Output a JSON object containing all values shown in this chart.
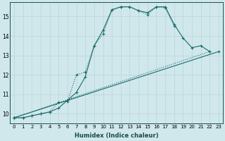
{
  "xlabel": "Humidex (Indice chaleur)",
  "background_color": "#d0e8ec",
  "line_color": "#1a6b6b",
  "grid_color": "#b8d4d8",
  "xlim": [
    -0.5,
    23.5
  ],
  "ylim": [
    9.5,
    15.75
  ],
  "yticks": [
    10,
    11,
    12,
    13,
    14,
    15
  ],
  "xticks": [
    0,
    1,
    2,
    3,
    4,
    5,
    6,
    7,
    8,
    9,
    10,
    11,
    12,
    13,
    14,
    15,
    16,
    17,
    18,
    19,
    20,
    21,
    22,
    23
  ],
  "line1_x": [
    0,
    1,
    2,
    3,
    4,
    5,
    6,
    7,
    8,
    9,
    10,
    11,
    12,
    13,
    14,
    15,
    16,
    17,
    18,
    19,
    20,
    21,
    22
  ],
  "line1_y": [
    9.8,
    9.8,
    9.9,
    10.0,
    10.1,
    10.3,
    10.7,
    11.1,
    11.9,
    13.5,
    14.3,
    15.35,
    15.5,
    15.5,
    15.3,
    15.2,
    15.5,
    15.5,
    14.6,
    13.9,
    13.4,
    13.5,
    13.2
  ],
  "line2_x": [
    0,
    1,
    2,
    3,
    4,
    5,
    6,
    7,
    8,
    9,
    10,
    11,
    12,
    13,
    14,
    15,
    16,
    17,
    18
  ],
  "line2_y": [
    9.8,
    9.8,
    9.9,
    10.0,
    10.1,
    10.6,
    10.65,
    12.0,
    12.15,
    13.5,
    14.1,
    15.35,
    15.5,
    15.5,
    15.3,
    15.1,
    15.5,
    15.45,
    14.5
  ],
  "line3_x": [
    0,
    23
  ],
  "line3_y": [
    9.8,
    13.2
  ],
  "line4_x": [
    0,
    22
  ],
  "line4_y": [
    9.8,
    13.2
  ]
}
